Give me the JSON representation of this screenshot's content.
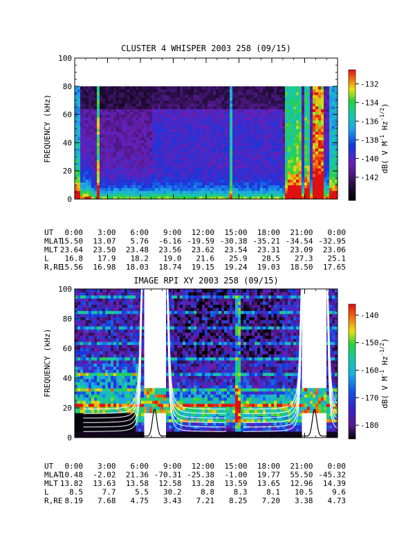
{
  "chart_data": [
    {
      "type": "heatmap",
      "title": "CLUSTER 4 WHISPER 2003 258 (09/15)",
      "ylabel": "FREQUENCY (kHz)",
      "ylim": [
        0,
        100
      ],
      "yticks": [
        0,
        20,
        40,
        60,
        80,
        100
      ],
      "x_tick_labels": [
        "0:00",
        "3:00",
        "6:00",
        "9:00",
        "12:00",
        "15:00",
        "18:00",
        "21:00",
        "0:00"
      ],
      "colorbar": {
        "label_main": "dB( V M",
        "label_sup1": "-1",
        "label_mid": " Hz",
        "label_sup2": "-1/2",
        "label_end": ")",
        "range": [
          -144.5,
          -130.5
        ],
        "ticks": [
          -132,
          -134,
          -136,
          -138,
          -140,
          -142
        ]
      },
      "data_upper_khz": 80,
      "ephemeris": {
        "row_labels": [
          "UT",
          "MLAT",
          "MLT",
          "L",
          "R,RE"
        ],
        "rows": [
          [
            "0:00",
            "3:00",
            "6:00",
            "9:00",
            "12:00",
            "15:00",
            "18:00",
            "21:00",
            "0:00"
          ],
          [
            "15.50",
            "13.07",
            "5.76",
            "-6.16",
            "-19.59",
            "-30.38",
            "-35.21",
            "-34.54",
            "-32.95"
          ],
          [
            "23.64",
            "23.50",
            "23.48",
            "23.56",
            "23.62",
            "23.54",
            "23.31",
            "23.09",
            "23.06"
          ],
          [
            "16.8",
            "17.9",
            "18.2",
            "19.0",
            "21.6",
            "25.9",
            "28.5",
            "27.3",
            "25.1"
          ],
          [
            "15.56",
            "16.98",
            "18.03",
            "18.74",
            "19.15",
            "19.24",
            "19.03",
            "18.50",
            "17.65"
          ]
        ]
      }
    },
    {
      "type": "heatmap",
      "title": "IMAGE RPI XY 2003 258 (09/15)",
      "ylabel": "FREQUENCY (kHz)",
      "ylim": [
        0,
        100
      ],
      "yticks": [
        0,
        20,
        40,
        60,
        80,
        100
      ],
      "x_tick_labels": [
        "0:00",
        "3:00",
        "6:00",
        "9:00",
        "12:00",
        "15:00",
        "18:00",
        "21:00",
        "0:00"
      ],
      "colorbar": {
        "label_main": "dB( V M",
        "label_sup1": "-1",
        "label_mid": " Hz",
        "label_sup2": "-1/2",
        "label_end": ")",
        "range": [
          -185,
          -136
        ],
        "ticks": [
          -140,
          -150,
          -160,
          -170,
          -180
        ]
      },
      "data_gaps_hours": [
        [
          6.2,
          8.4
        ],
        [
          20.8,
          23.0
        ]
      ],
      "gap_band_khz": [
        17,
        33
      ],
      "ephemeris": {
        "row_labels": [
          "UT",
          "MLAT",
          "MLT",
          "L",
          "R,RE"
        ],
        "rows": [
          [
            "0:00",
            "3:00",
            "6:00",
            "9:00",
            "12:00",
            "15:00",
            "18:00",
            "21:00",
            "0:00"
          ],
          [
            "-10.48",
            "-2.02",
            "21.36",
            "-70.31",
            "-25.38",
            "-1.00",
            "19.77",
            "55.50",
            "-45.32"
          ],
          [
            "13.82",
            "13.63",
            "13.58",
            "12.58",
            "13.28",
            "13.59",
            "13.65",
            "12.96",
            "14.39"
          ],
          [
            "8.5",
            "7.7",
            "5.5",
            "30.2",
            "8.8",
            "8.3",
            "8.1",
            "10.5",
            "9.6"
          ],
          [
            "8.19",
            "7.68",
            "4.75",
            "3.43",
            "7.21",
            "8.25",
            "7.20",
            "3.38",
            "4.73"
          ]
        ]
      }
    }
  ]
}
